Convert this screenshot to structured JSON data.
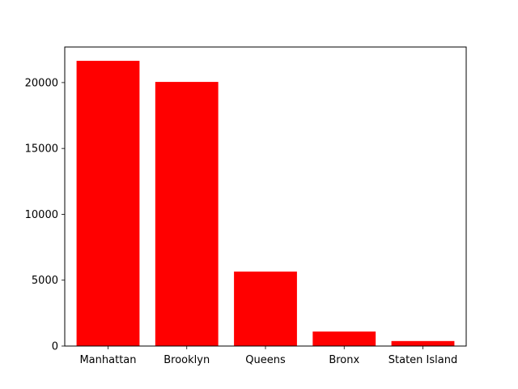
{
  "chart_data": {
    "type": "bar",
    "title": "",
    "xlabel": "",
    "ylabel": "",
    "categories": [
      "Manhattan",
      "Brooklyn",
      "Queens",
      "Bronx",
      "Staten Island"
    ],
    "values": [
      21650,
      20050,
      5650,
      1100,
      380
    ],
    "ylim": [
      0,
      22700
    ],
    "yticks": [
      0,
      5000,
      10000,
      15000,
      20000
    ],
    "ytick_labels": [
      "0",
      "5000",
      "10000",
      "15000",
      "20000"
    ],
    "bar_color": "#ff0000",
    "grid": false,
    "legend": "none"
  }
}
